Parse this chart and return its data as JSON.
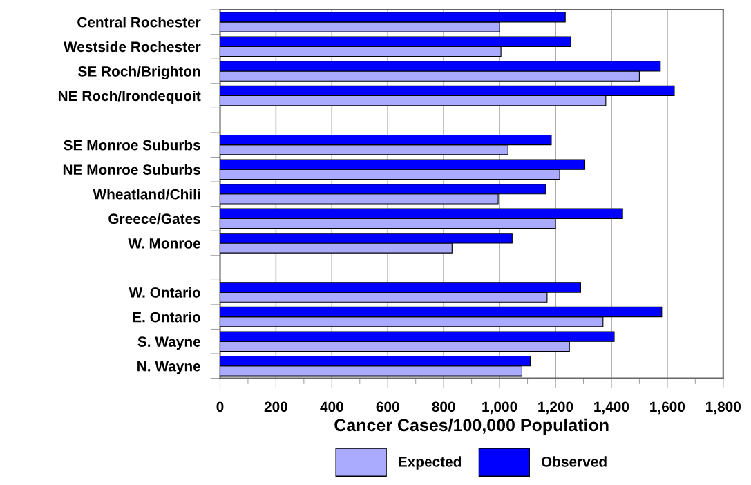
{
  "chart_data": {
    "type": "bar",
    "orientation": "horizontal",
    "xlabel": "Cancer Cases/100,000 Population",
    "categories": [
      "Central Rochester",
      "Westside Rochester",
      "SE Roch/Brighton",
      "NE Roch/Irondequoit",
      null,
      "SE Monroe Suburbs",
      "NE Monroe Suburbs",
      "Wheatland/Chili",
      "Greece/Gates",
      "W. Monroe",
      null,
      "W. Ontario",
      "E. Ontario",
      "S. Wayne",
      "N. Wayne"
    ],
    "series": [
      {
        "name": "Expected",
        "color": "#aaaaff",
        "values": [
          1000,
          1005,
          1500,
          1380,
          null,
          1030,
          1215,
          995,
          1200,
          830,
          null,
          1170,
          1370,
          1250,
          1080
        ]
      },
      {
        "name": "Observed",
        "color": "#0000ff",
        "values": [
          1235,
          1255,
          1575,
          1625,
          null,
          1185,
          1305,
          1165,
          1440,
          1045,
          null,
          1290,
          1580,
          1410,
          1110
        ]
      }
    ],
    "xlim": [
      0,
      1800
    ],
    "xticks": [
      0,
      200,
      400,
      600,
      800,
      {
        "value": 1000,
        "label": "1,000"
      },
      {
        "value": 1200,
        "label": "1,200"
      },
      {
        "value": 1400,
        "label": "1,400"
      },
      {
        "value": 1600,
        "label": "1,600"
      },
      {
        "value": 1800,
        "label": "1,800"
      }
    ],
    "grid": "x",
    "legend": "bottom"
  }
}
